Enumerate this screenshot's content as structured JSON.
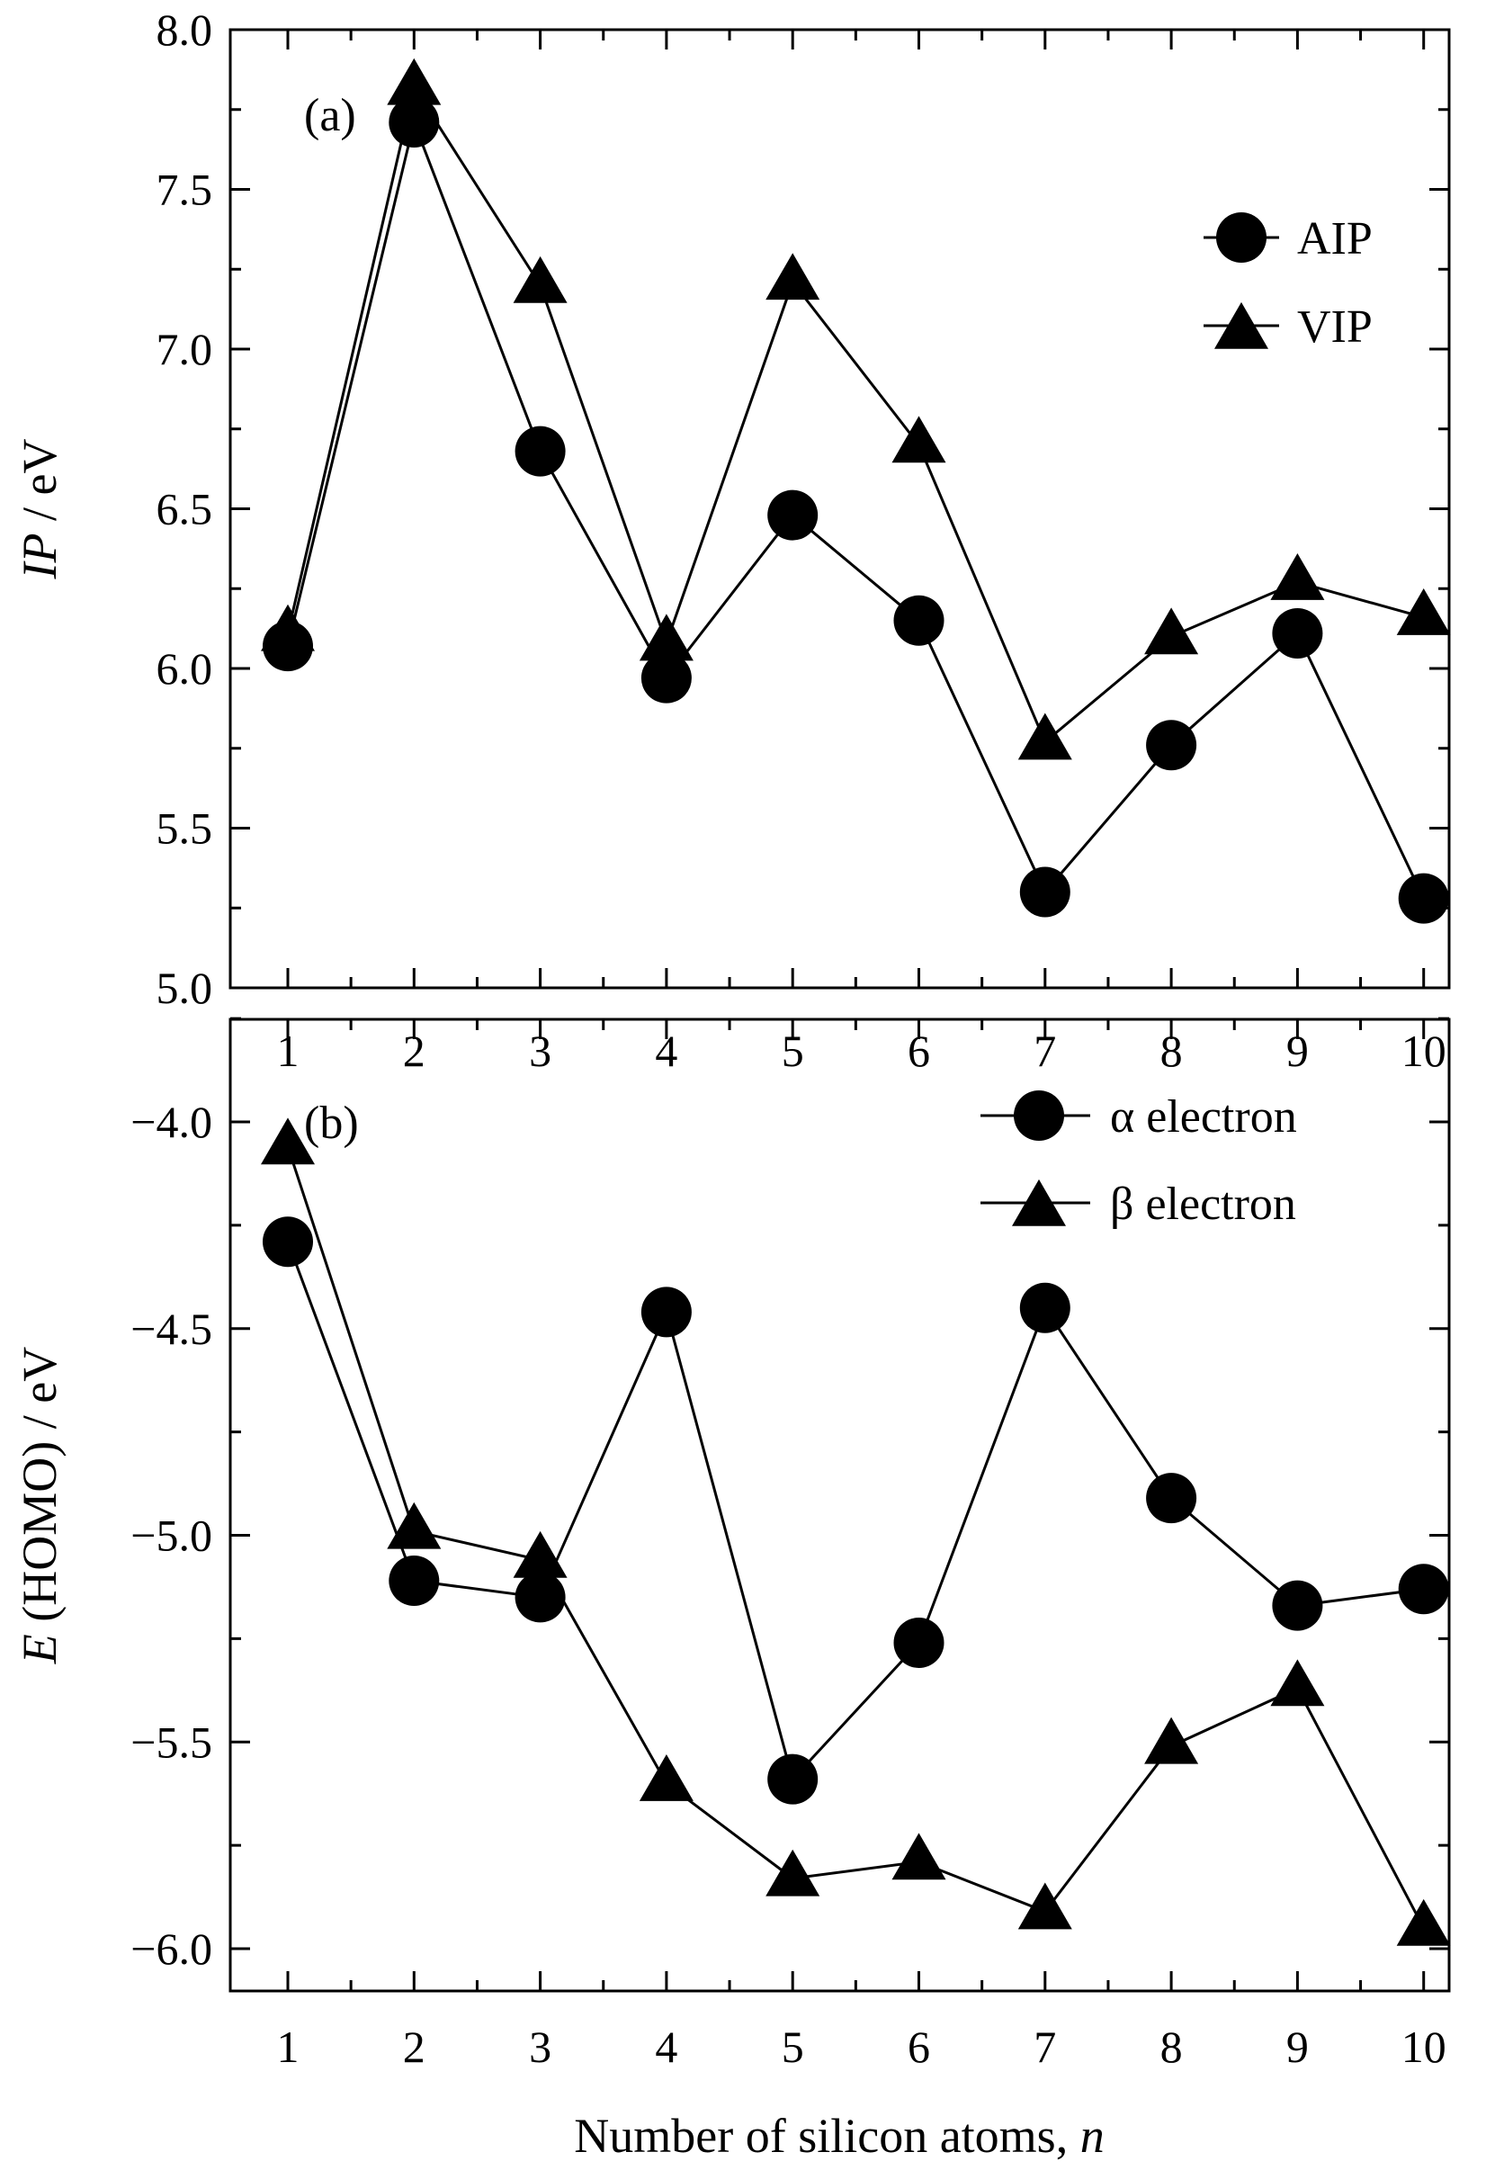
{
  "chart_data": [
    {
      "panel": "(a)",
      "type": "line",
      "x": [
        1,
        2,
        3,
        4,
        5,
        6,
        7,
        8,
        9,
        10
      ],
      "ylabel_italic": "IP",
      "ylabel_rest": " / eV",
      "ylim": [
        5.0,
        8.0
      ],
      "yticks": [
        5.0,
        5.5,
        6.0,
        6.5,
        7.0,
        7.5,
        8.0
      ],
      "ytick_labels": [
        "5.0",
        "5.5",
        "6.0",
        "6.5",
        "7.0",
        "7.5",
        "8.0"
      ],
      "xtick_labels": [
        "1",
        "2",
        "3",
        "4",
        "5",
        "6",
        "7",
        "8",
        "9",
        "10"
      ],
      "legend_position": "top-right",
      "series": [
        {
          "name": "AIP",
          "marker": "circle",
          "values": [
            6.07,
            7.71,
            6.68,
            5.97,
            6.48,
            6.15,
            5.3,
            5.76,
            6.11,
            5.28
          ]
        },
        {
          "name": "VIP",
          "marker": "triangle",
          "values": [
            6.11,
            7.82,
            7.2,
            6.08,
            7.21,
            6.7,
            5.77,
            6.1,
            6.27,
            6.16
          ]
        }
      ]
    },
    {
      "panel": "(b)",
      "type": "line",
      "x": [
        1,
        2,
        3,
        4,
        5,
        6,
        7,
        8,
        9,
        10
      ],
      "ylabel_italic": "E",
      "ylabel_rest": " (HOMO) / eV",
      "xlabel_main": "Number of silicon atoms, ",
      "xlabel_italic": "n",
      "ylim": [
        -6.15,
        -3.6
      ],
      "yticks": [
        -6.0,
        -5.5,
        -5.0,
        -4.5,
        -4.0
      ],
      "ytick_labels": [
        "−6.0",
        "−5.5",
        "−5.0",
        "−4.5",
        "−4.0"
      ],
      "xtick_labels": [
        "1",
        "2",
        "3",
        "4",
        "5",
        "6",
        "7",
        "8",
        "9",
        "10"
      ],
      "legend_position": "top-right",
      "series": [
        {
          "name": "α electron",
          "marker": "circle",
          "values": [
            -4.29,
            -5.11,
            -5.15,
            -4.46,
            -5.59,
            -5.26,
            -4.45,
            -4.91,
            -5.17,
            -5.13
          ]
        },
        {
          "name": "β electron",
          "marker": "triangle",
          "values": [
            -4.06,
            -4.99,
            -5.06,
            -5.6,
            -5.83,
            -5.79,
            -5.91,
            -5.51,
            -5.37,
            -5.95
          ]
        }
      ]
    }
  ]
}
